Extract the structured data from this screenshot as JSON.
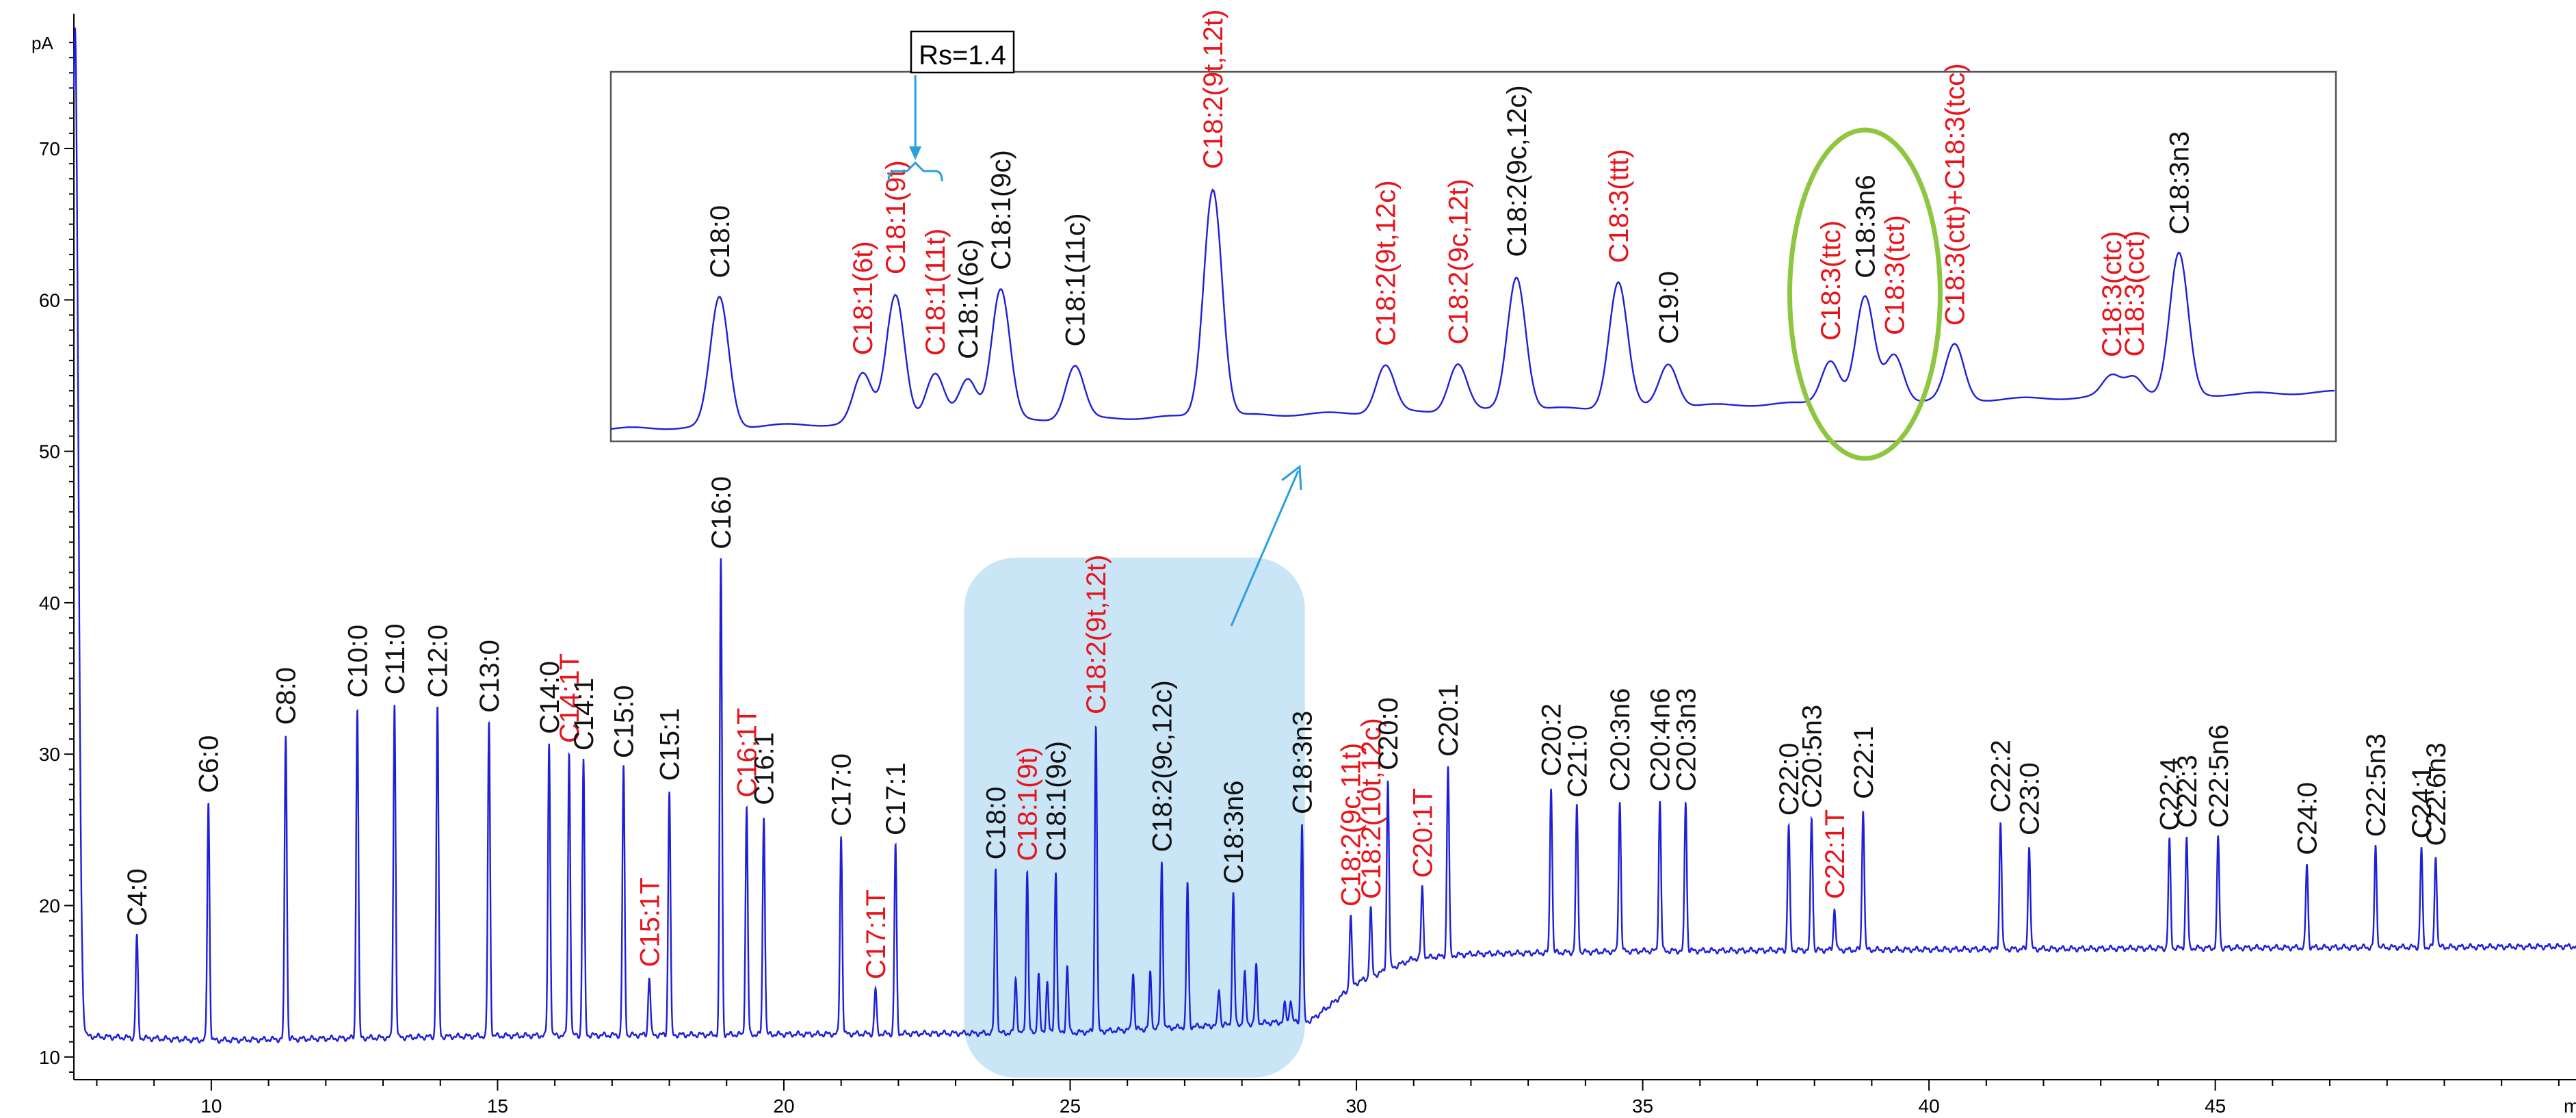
{
  "chart_data": {
    "type": "line",
    "y_unit_label": "pA",
    "x_unit_label": "m",
    "xlim": [
      7.6,
      51.3
    ],
    "ylim": [
      8.5,
      78
    ],
    "x_ticks": [
      10,
      15,
      20,
      25,
      30,
      35,
      40,
      45
    ],
    "y_ticks": [
      10,
      20,
      30,
      40,
      50,
      60,
      70
    ],
    "grid": false,
    "colors": {
      "trace": "#1f1fd9",
      "trans_label": "#e8141c",
      "cis_label": "#111111",
      "highlight_box": "#bfe0f5",
      "ellipse": "#8dc63f",
      "arrow": "#2a9fe0"
    },
    "baseline_points": [
      [
        7.6,
        11.4
      ],
      [
        10,
        11.1
      ],
      [
        15,
        11.4
      ],
      [
        20,
        11.5
      ],
      [
        25,
        11.6
      ],
      [
        29.2,
        12.4
      ],
      [
        29.6,
        13.6
      ],
      [
        30.0,
        14.9
      ],
      [
        31.0,
        16.5
      ],
      [
        32.0,
        16.8
      ],
      [
        35,
        17.0
      ],
      [
        40,
        17.1
      ],
      [
        45,
        17.2
      ],
      [
        51.3,
        17.3
      ]
    ],
    "peaks": [
      {
        "label": "C4:0",
        "x": 8.7,
        "y": 18.0,
        "trans": false
      },
      {
        "label": "C6:0",
        "x": 9.95,
        "y": 26.8,
        "trans": false
      },
      {
        "label": "C8:0",
        "x": 11.3,
        "y": 31.3,
        "trans": false
      },
      {
        "label": "C10:0",
        "x": 12.55,
        "y": 33.1,
        "trans": false
      },
      {
        "label": "C11:0",
        "x": 13.2,
        "y": 33.3,
        "trans": false
      },
      {
        "label": "C12:0",
        "x": 13.95,
        "y": 33.1,
        "trans": false
      },
      {
        "label": "C13:0",
        "x": 14.85,
        "y": 32.1,
        "trans": false
      },
      {
        "label": "C14:0",
        "x": 15.9,
        "y": 30.7,
        "trans": false
      },
      {
        "label": "C14:1T",
        "x": 16.25,
        "y": 30.1,
        "trans": true
      },
      {
        "label": "C14:1",
        "x": 16.5,
        "y": 29.6,
        "trans": false
      },
      {
        "label": "C15:0",
        "x": 17.2,
        "y": 29.1,
        "trans": false
      },
      {
        "label": "C15:1T",
        "x": 17.65,
        "y": 15.3,
        "trans": true
      },
      {
        "label": "C15:1",
        "x": 18.0,
        "y": 27.6,
        "trans": false
      },
      {
        "label": "C16:0",
        "x": 18.9,
        "y": 42.9,
        "trans": false
      },
      {
        "label": "C16:1T",
        "x": 19.35,
        "y": 26.5,
        "trans": true
      },
      {
        "label": "C16:1",
        "x": 19.65,
        "y": 26.0,
        "trans": false
      },
      {
        "label": "C17:0",
        "x": 21.0,
        "y": 24.6,
        "trans": false
      },
      {
        "label": "C17:1T",
        "x": 21.6,
        "y": 14.5,
        "trans": true
      },
      {
        "label": "C17:1",
        "x": 21.95,
        "y": 24.0,
        "trans": false
      },
      {
        "label": "C18:0",
        "x": 23.7,
        "y": 22.4,
        "trans": false
      },
      {
        "label": "C18:1(9t)",
        "x": 24.25,
        "y": 22.3,
        "trans": true
      },
      {
        "label": "C18:1(9c)",
        "x": 24.75,
        "y": 22.3,
        "trans": false
      },
      {
        "label": "C18:2(9t,12t)",
        "x": 25.45,
        "y": 32.0,
        "trans": true
      },
      {
        "label": "C18:2(9c,12c)",
        "x": 26.6,
        "y": 22.9,
        "trans": false
      },
      {
        "label": "C18:3n6",
        "x": 27.85,
        "y": 20.8,
        "trans": false
      },
      {
        "label": "C18:3n3",
        "x": 29.05,
        "y": 25.4,
        "trans": false
      },
      {
        "label": "C18:2(9c,11t)",
        "x": 29.9,
        "y": 19.3,
        "trans": true
      },
      {
        "label": "C18:2(10t,12c)",
        "x": 30.25,
        "y": 19.8,
        "trans": true
      },
      {
        "label": "C20:0",
        "x": 30.55,
        "y": 28.3,
        "trans": false
      },
      {
        "label": "C20:1T",
        "x": 31.15,
        "y": 21.2,
        "trans": true
      },
      {
        "label": "C20:1",
        "x": 31.6,
        "y": 29.2,
        "trans": false
      },
      {
        "label": "C20:2",
        "x": 33.4,
        "y": 27.9,
        "trans": false
      },
      {
        "label": "C21:0",
        "x": 33.85,
        "y": 26.5,
        "trans": false
      },
      {
        "label": "C20:3n6",
        "x": 34.6,
        "y": 26.9,
        "trans": false
      },
      {
        "label": "C20:4n6",
        "x": 35.3,
        "y": 26.9,
        "trans": false
      },
      {
        "label": "C20:3n3",
        "x": 35.75,
        "y": 26.9,
        "trans": false
      },
      {
        "label": "C22:0",
        "x": 37.55,
        "y": 25.3,
        "trans": false
      },
      {
        "label": "C20:5n3",
        "x": 37.95,
        "y": 25.8,
        "trans": false
      },
      {
        "label": "C22:1T",
        "x": 38.35,
        "y": 19.8,
        "trans": true
      },
      {
        "label": "C22:1",
        "x": 38.85,
        "y": 26.4,
        "trans": false
      },
      {
        "label": "C22:2",
        "x": 41.25,
        "y": 25.5,
        "trans": false
      },
      {
        "label": "C23:0",
        "x": 41.75,
        "y": 24.0,
        "trans": false
      },
      {
        "label": "C22:4",
        "x": 44.2,
        "y": 24.3,
        "trans": false
      },
      {
        "label": "C22:3",
        "x": 44.5,
        "y": 24.5,
        "trans": false
      },
      {
        "label": "C22:5n6",
        "x": 45.05,
        "y": 24.5,
        "trans": false
      },
      {
        "label": "C24:0",
        "x": 46.6,
        "y": 22.7,
        "trans": false
      },
      {
        "label": "C22:5n3",
        "x": 47.8,
        "y": 23.9,
        "trans": false
      },
      {
        "label": "C24:1",
        "x": 48.6,
        "y": 23.8,
        "trans": false
      },
      {
        "label": "C22:6n3",
        "x": 48.85,
        "y": 23.3,
        "trans": false
      }
    ],
    "minor_peaks": [
      [
        24.05,
        15.2
      ],
      [
        24.45,
        15.5
      ],
      [
        24.6,
        15.0
      ],
      [
        24.95,
        16.0
      ],
      [
        26.1,
        15.6
      ],
      [
        26.4,
        15.6
      ],
      [
        27.05,
        21.5
      ],
      [
        27.6,
        14.5
      ],
      [
        28.05,
        15.5
      ],
      [
        28.25,
        16.0
      ],
      [
        28.75,
        13.5
      ],
      [
        28.85,
        13.8
      ]
    ],
    "solvent_front": {
      "x": 7.62,
      "y": 78
    },
    "inset": {
      "resolution_label": "Rs=1.4",
      "peaks": [
        {
          "label": "C18:0",
          "t": 0.063,
          "h": 0.63,
          "trans": false
        },
        {
          "label": "C18:1(6t)",
          "t": 0.146,
          "h": 0.24,
          "trans": true
        },
        {
          "label": "C18:1(9t)",
          "t": 0.165,
          "h": 0.63,
          "trans": true
        },
        {
          "label": "C18:1(11t)",
          "t": 0.188,
          "h": 0.23,
          "trans": true
        },
        {
          "label": "C18:1(6c)",
          "t": 0.207,
          "h": 0.21,
          "trans": false
        },
        {
          "label": "C18:1(9c)",
          "t": 0.226,
          "h": 0.64,
          "trans": false
        },
        {
          "label": "C18:1(11c)",
          "t": 0.269,
          "h": 0.26,
          "trans": false
        },
        {
          "label": "C18:2(9t,12t)",
          "t": 0.349,
          "h": 1.11,
          "trans": true
        },
        {
          "label": "C18:2(9t,12c)",
          "t": 0.449,
          "h": 0.23,
          "trans": true
        },
        {
          "label": "C18:2(9c,12t)",
          "t": 0.491,
          "h": 0.23,
          "trans": true
        },
        {
          "label": "C18:2(9c,12c)",
          "t": 0.525,
          "h": 0.65,
          "trans": false
        },
        {
          "label": "C18:3(ttt)",
          "t": 0.584,
          "h": 0.61,
          "trans": true
        },
        {
          "label": "C19:0",
          "t": 0.613,
          "h": 0.21,
          "trans": false
        },
        {
          "label": "C18:3(ttc)",
          "t": 0.707,
          "h": 0.21,
          "trans": true
        },
        {
          "label": "C18:3n6",
          "t": 0.727,
          "h": 0.51,
          "trans": false
        },
        {
          "label": "C18:3(tct)",
          "t": 0.744,
          "h": 0.23,
          "trans": true
        },
        {
          "label": "C18:3(ctt)+C18:3(tcc)",
          "t": 0.779,
          "h": 0.27,
          "trans": true
        },
        {
          "label": "C18:3(ctc)",
          "t": 0.87,
          "h": 0.1,
          "trans": true
        },
        {
          "label": "C18:3(cct)",
          "t": 0.883,
          "h": 0.1,
          "trans": true
        },
        {
          "label": "C18:3n3",
          "t": 0.909,
          "h": 0.69,
          "trans": false
        }
      ]
    }
  }
}
